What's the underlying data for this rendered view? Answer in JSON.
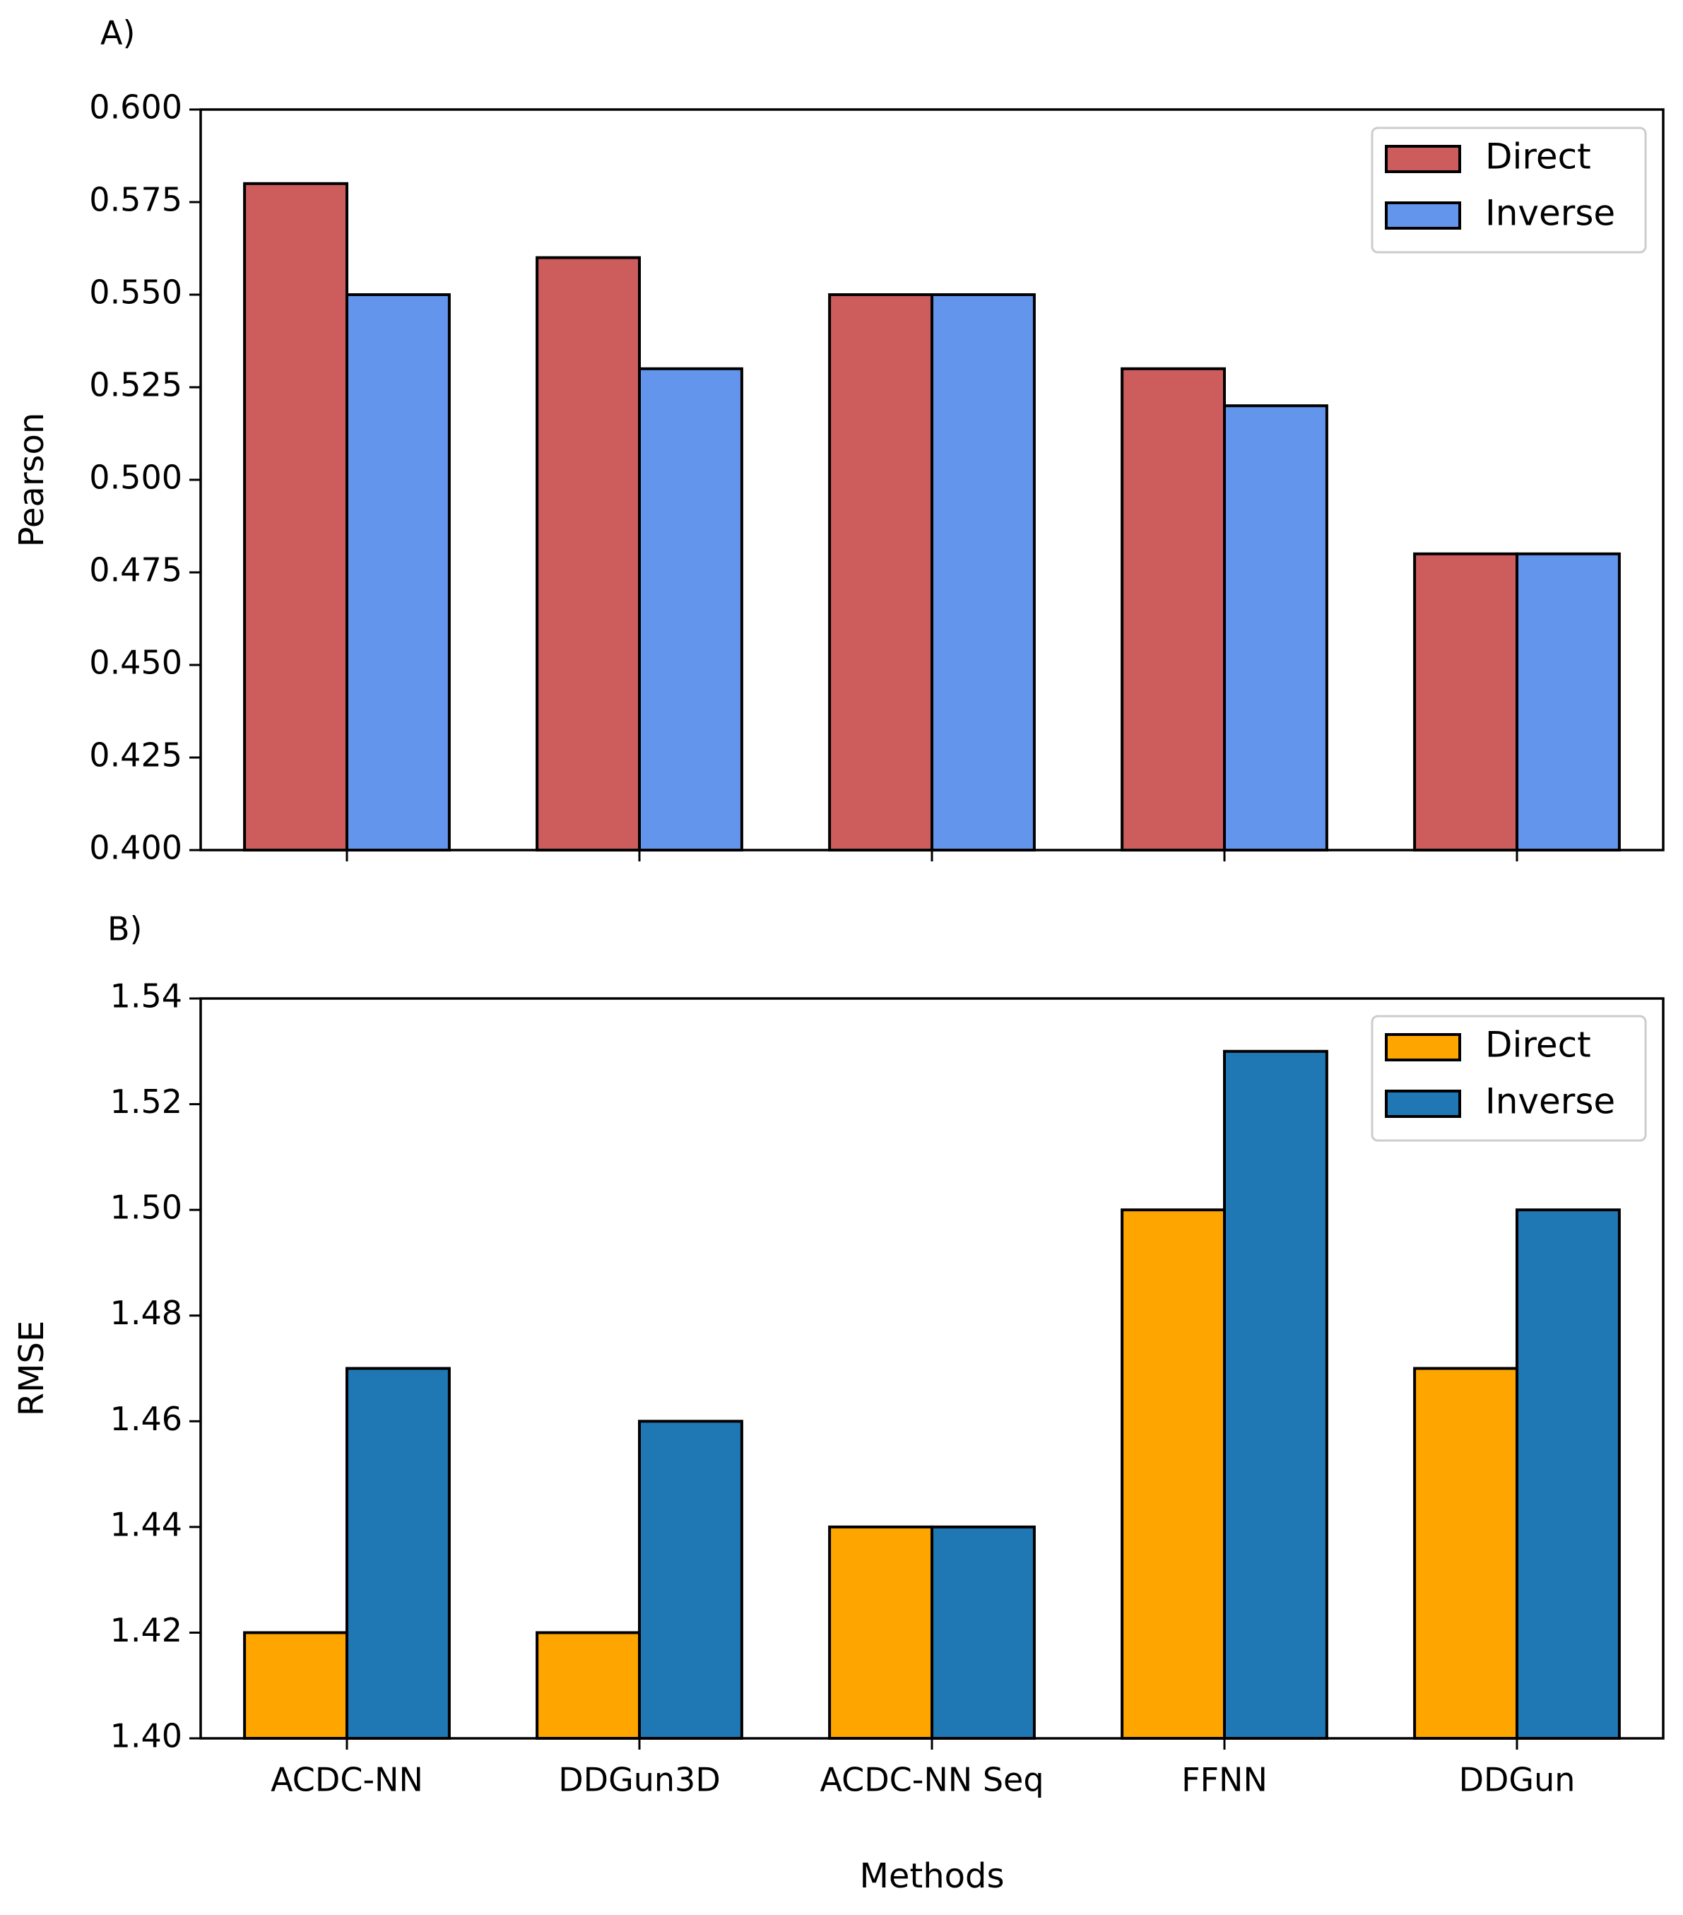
{
  "chart_data": [
    {
      "panel_label": "A)",
      "type": "bar",
      "categories": [
        "ACDC-NN",
        "DDGun3D",
        "ACDC-NN Seq",
        "FFNN",
        "DDGun"
      ],
      "series": [
        {
          "name": "Direct",
          "color": "#cd5c5c",
          "values": [
            0.58,
            0.56,
            0.55,
            0.53,
            0.48
          ]
        },
        {
          "name": "Inverse",
          "color": "#6495ed",
          "values": [
            0.55,
            0.53,
            0.55,
            0.52,
            0.48
          ]
        }
      ],
      "ylabel": "Pearson",
      "xlabel": "",
      "ylim": [
        0.4,
        0.6
      ],
      "yticks": [
        "0.400",
        "0.425",
        "0.450",
        "0.475",
        "0.500",
        "0.525",
        "0.550",
        "0.575",
        "0.600"
      ],
      "show_xticklabels": false,
      "legend": {
        "position": "top-right",
        "labels": [
          "Direct",
          "Inverse"
        ]
      }
    },
    {
      "panel_label": "B)",
      "type": "bar",
      "categories": [
        "ACDC-NN",
        "DDGun3D",
        "ACDC-NN Seq",
        "FFNN",
        "DDGun"
      ],
      "series": [
        {
          "name": "Direct",
          "color": "#ffa500",
          "values": [
            1.42,
            1.42,
            1.44,
            1.5,
            1.47
          ]
        },
        {
          "name": "Inverse",
          "color": "#1f77b4",
          "values": [
            1.47,
            1.46,
            1.44,
            1.53,
            1.5
          ]
        }
      ],
      "ylabel": "RMSE",
      "xlabel": "Methods",
      "ylim": [
        1.4,
        1.54
      ],
      "yticks": [
        "1.40",
        "1.42",
        "1.44",
        "1.46",
        "1.48",
        "1.50",
        "1.52",
        "1.54"
      ],
      "show_xticklabels": true,
      "legend": {
        "position": "top-right",
        "labels": [
          "Direct",
          "Inverse"
        ]
      }
    }
  ]
}
